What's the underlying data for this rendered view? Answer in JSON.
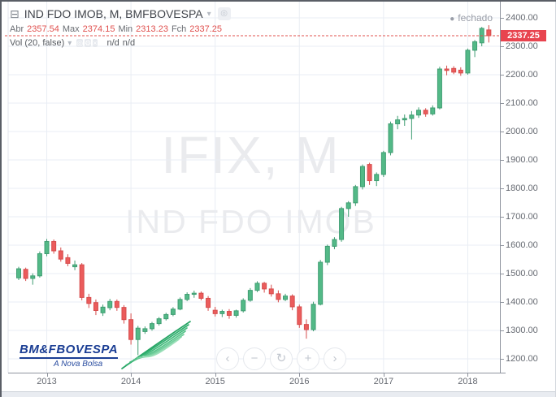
{
  "header": {
    "collapse_glyph": "⊟",
    "title": "IND FDO IMOB, M, BMFBOVESPA",
    "caret": "▾",
    "eye_glyph": "◎",
    "ohlc": [
      {
        "label": "Abr",
        "value": "2357.54"
      },
      {
        "label": "Max",
        "value": "2374.15"
      },
      {
        "label": "Min",
        "value": "2313.23"
      },
      {
        "label": "Fch",
        "value": "2337.25"
      }
    ],
    "indicator": {
      "label": "Vol (20, false)",
      "caret": "▾",
      "icons": [
        {
          "name": "eye-icon",
          "glyph": "◎"
        },
        {
          "name": "gear-icon",
          "glyph": "⚙"
        },
        {
          "name": "close-icon",
          "glyph": "×"
        }
      ],
      "values": [
        "n/d",
        "n/d"
      ]
    },
    "status": "fechado",
    "status_dot": "●"
  },
  "watermark": {
    "line1": "IFIX, M",
    "line2": "IND FDO IMOB"
  },
  "price_axis": {
    "ticks": [
      "2400.00",
      "2300.00",
      "2200.00",
      "2100.00",
      "2000.00",
      "1900.00",
      "1800.00",
      "1700.00",
      "1600.00",
      "1500.00",
      "1400.00",
      "1300.00",
      "1200.00"
    ],
    "last_price": "2337.25"
  },
  "time_axis": {
    "years": [
      "2013",
      "2014",
      "2015",
      "2016",
      "2017",
      "2018"
    ]
  },
  "nav": {
    "buttons": [
      {
        "name": "scroll-left-button",
        "glyph": "‹"
      },
      {
        "name": "zoom-out-button",
        "glyph": "−"
      },
      {
        "name": "reset-view-button",
        "glyph": "↻"
      },
      {
        "name": "zoom-in-button",
        "glyph": "+"
      },
      {
        "name": "scroll-right-button",
        "glyph": "›"
      }
    ]
  },
  "logo": {
    "name": "BM&FBOVESPA",
    "tagline": "A Nova Bolsa"
  },
  "colors": {
    "up": "#53b987",
    "up_border": "#3f9d72",
    "down": "#eb5c5c",
    "down_border": "#d64c4c",
    "badge": "#e8444f",
    "dashed_line": "#e0504e",
    "grid": "#e9edf4",
    "axis_text": "#656971",
    "logo_green": "#2fae6e"
  },
  "chart_data": {
    "type": "candlestick",
    "symbol": "IFIX (IND FDO IMOB)",
    "timeframe": "M",
    "title_watermark": "IFIX, M",
    "subtitle_watermark": "IND FDO IMOB",
    "ylim": [
      1200,
      2400
    ],
    "y_step": 100,
    "grid": true,
    "last_close": 2337.25,
    "last_bar": {
      "open": 2357.54,
      "high": 2374.15,
      "low": 2313.23,
      "close": 2337.25
    },
    "year_start_indices": [
      4,
      16,
      28,
      40,
      52,
      64
    ],
    "months": [
      "2012-09",
      "2012-10",
      "2012-11",
      "2012-12",
      "2013-01",
      "2013-02",
      "2013-03",
      "2013-04",
      "2013-05",
      "2013-06",
      "2013-07",
      "2013-08",
      "2013-09",
      "2013-10",
      "2013-11",
      "2013-12",
      "2014-01",
      "2014-02",
      "2014-03",
      "2014-04",
      "2014-05",
      "2014-06",
      "2014-07",
      "2014-08",
      "2014-09",
      "2014-10",
      "2014-11",
      "2014-12",
      "2015-01",
      "2015-02",
      "2015-03",
      "2015-04",
      "2015-05",
      "2015-06",
      "2015-07",
      "2015-08",
      "2015-09",
      "2015-10",
      "2015-11",
      "2015-12",
      "2016-01",
      "2016-02",
      "2016-03",
      "2016-04",
      "2016-05",
      "2016-06",
      "2016-07",
      "2016-08",
      "2016-09",
      "2016-10",
      "2016-11",
      "2016-12",
      "2017-01",
      "2017-02",
      "2017-03",
      "2017-04",
      "2017-05",
      "2017-06",
      "2017-07",
      "2017-08",
      "2017-09",
      "2017-10",
      "2017-11",
      "2017-12",
      "2018-01",
      "2018-02",
      "2018-03",
      "2018-04"
    ],
    "ohlc": [
      [
        1485,
        1524,
        1477,
        1517
      ],
      [
        1515,
        1521,
        1474,
        1483
      ],
      [
        1483,
        1501,
        1461,
        1492
      ],
      [
        1492,
        1578,
        1486,
        1570
      ],
      [
        1570,
        1622,
        1561,
        1613
      ],
      [
        1613,
        1620,
        1570,
        1580
      ],
      [
        1580,
        1592,
        1542,
        1551
      ],
      [
        1556,
        1568,
        1526,
        1536
      ],
      [
        1524,
        1546,
        1512,
        1531
      ],
      [
        1531,
        1537,
        1406,
        1416
      ],
      [
        1416,
        1429,
        1379,
        1395
      ],
      [
        1398,
        1409,
        1354,
        1370
      ],
      [
        1362,
        1391,
        1351,
        1382
      ],
      [
        1380,
        1411,
        1371,
        1402
      ],
      [
        1402,
        1409,
        1369,
        1381
      ],
      [
        1381,
        1389,
        1324,
        1338
      ],
      [
        1338,
        1360,
        1250,
        1268
      ],
      [
        1268,
        1316,
        1213,
        1308
      ],
      [
        1296,
        1314,
        1288,
        1306
      ],
      [
        1306,
        1330,
        1299,
        1324
      ],
      [
        1324,
        1347,
        1317,
        1341
      ],
      [
        1341,
        1362,
        1335,
        1356
      ],
      [
        1356,
        1382,
        1350,
        1375
      ],
      [
        1375,
        1416,
        1371,
        1409
      ],
      [
        1409,
        1434,
        1403,
        1427
      ],
      [
        1427,
        1440,
        1415,
        1431
      ],
      [
        1431,
        1437,
        1406,
        1413
      ],
      [
        1413,
        1421,
        1369,
        1381
      ],
      [
        1371,
        1383,
        1349,
        1359
      ],
      [
        1359,
        1373,
        1347,
        1367
      ],
      [
        1367,
        1375,
        1341,
        1353
      ],
      [
        1353,
        1373,
        1345,
        1369
      ],
      [
        1369,
        1413,
        1363,
        1406
      ],
      [
        1406,
        1449,
        1401,
        1441
      ],
      [
        1441,
        1473,
        1435,
        1466
      ],
      [
        1466,
        1471,
        1433,
        1446
      ],
      [
        1446,
        1461,
        1419,
        1429
      ],
      [
        1429,
        1441,
        1399,
        1409
      ],
      [
        1409,
        1429,
        1403,
        1421
      ],
      [
        1421,
        1427,
        1371,
        1383
      ],
      [
        1383,
        1391,
        1309,
        1321
      ],
      [
        1321,
        1339,
        1271,
        1303
      ],
      [
        1303,
        1401,
        1297,
        1392
      ],
      [
        1392,
        1548,
        1388,
        1540
      ],
      [
        1540,
        1602,
        1530,
        1596
      ],
      [
        1596,
        1628,
        1586,
        1620
      ],
      [
        1620,
        1735,
        1612,
        1729
      ],
      [
        1729,
        1755,
        1700,
        1749
      ],
      [
        1749,
        1812,
        1738,
        1806
      ],
      [
        1806,
        1884,
        1796,
        1877
      ],
      [
        1884,
        1890,
        1812,
        1827
      ],
      [
        1827,
        1856,
        1808,
        1849
      ],
      [
        1849,
        1932,
        1840,
        1926
      ],
      [
        1926,
        2035,
        1916,
        2027
      ],
      [
        2027,
        2055,
        2008,
        2041
      ],
      [
        2041,
        2060,
        2020,
        2046
      ],
      [
        2046,
        2072,
        1972,
        2058
      ],
      [
        2058,
        2085,
        2048,
        2075
      ],
      [
        2075,
        2082,
        2052,
        2062
      ],
      [
        2062,
        2092,
        2056,
        2083
      ],
      [
        2083,
        2228,
        2078,
        2220
      ],
      [
        2220,
        2232,
        2198,
        2215
      ],
      [
        2222,
        2230,
        2202,
        2209
      ],
      [
        2216,
        2226,
        2196,
        2206
      ],
      [
        2206,
        2292,
        2200,
        2286
      ],
      [
        2286,
        2322,
        2262,
        2316
      ],
      [
        2312,
        2368,
        2300,
        2363
      ],
      [
        2357.54,
        2374.15,
        2313.23,
        2337.25
      ]
    ]
  }
}
